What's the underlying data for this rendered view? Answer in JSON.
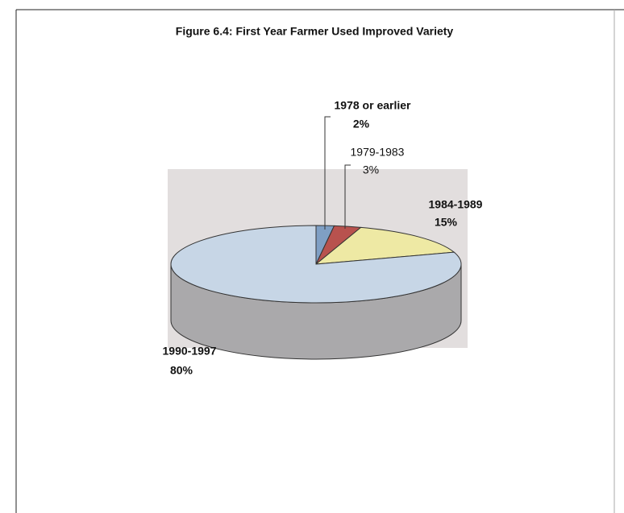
{
  "chart_data": {
    "type": "pie",
    "title": "Figure 6.4: First Year Farmer Used Improved Variety",
    "categories": [
      "1978 or earlier",
      "1979-1983",
      "1984-1989",
      "1990-1997"
    ],
    "values": [
      2,
      3,
      15,
      80
    ],
    "value_labels": [
      "2%",
      "3%",
      "15%",
      "80%"
    ],
    "colors": [
      "#7f9fc4",
      "#b8524e",
      "#eee9a4",
      "#c7d6e6"
    ]
  }
}
